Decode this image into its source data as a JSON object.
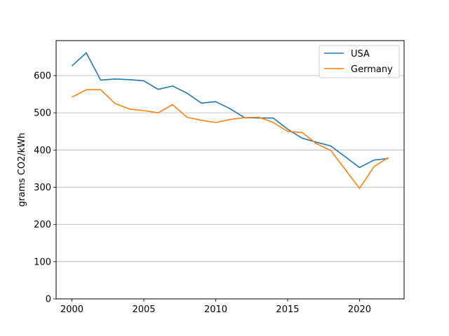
{
  "chart_data": {
    "type": "line",
    "title": "",
    "xlabel": "",
    "ylabel": "grams CO2/kWh",
    "x": [
      2000,
      2001,
      2002,
      2003,
      2004,
      2005,
      2006,
      2007,
      2008,
      2009,
      2010,
      2011,
      2012,
      2013,
      2014,
      2015,
      2016,
      2017,
      2018,
      2019,
      2020,
      2021,
      2022
    ],
    "series": [
      {
        "name": "USA",
        "color": "#1f77b4",
        "values": [
          626,
          661,
          588,
          591,
          589,
          586,
          563,
          572,
          553,
          526,
          530,
          511,
          487,
          486,
          486,
          456,
          432,
          421,
          411,
          382,
          353,
          373,
          377
        ]
      },
      {
        "name": "Germany",
        "color": "#ff7f0e",
        "values": [
          542,
          562,
          562,
          525,
          510,
          506,
          500,
          522,
          488,
          480,
          474,
          482,
          487,
          488,
          474,
          450,
          447,
          417,
          399,
          348,
          297,
          355,
          380
        ]
      }
    ],
    "xlim": [
      1998.9,
      2023.1
    ],
    "ylim": [
      0,
      694
    ],
    "xticks": [
      2000,
      2005,
      2010,
      2015,
      2020
    ],
    "yticks": [
      0,
      100,
      200,
      300,
      400,
      500,
      600
    ],
    "grid": "horizontal",
    "legend_position": "top-right"
  }
}
